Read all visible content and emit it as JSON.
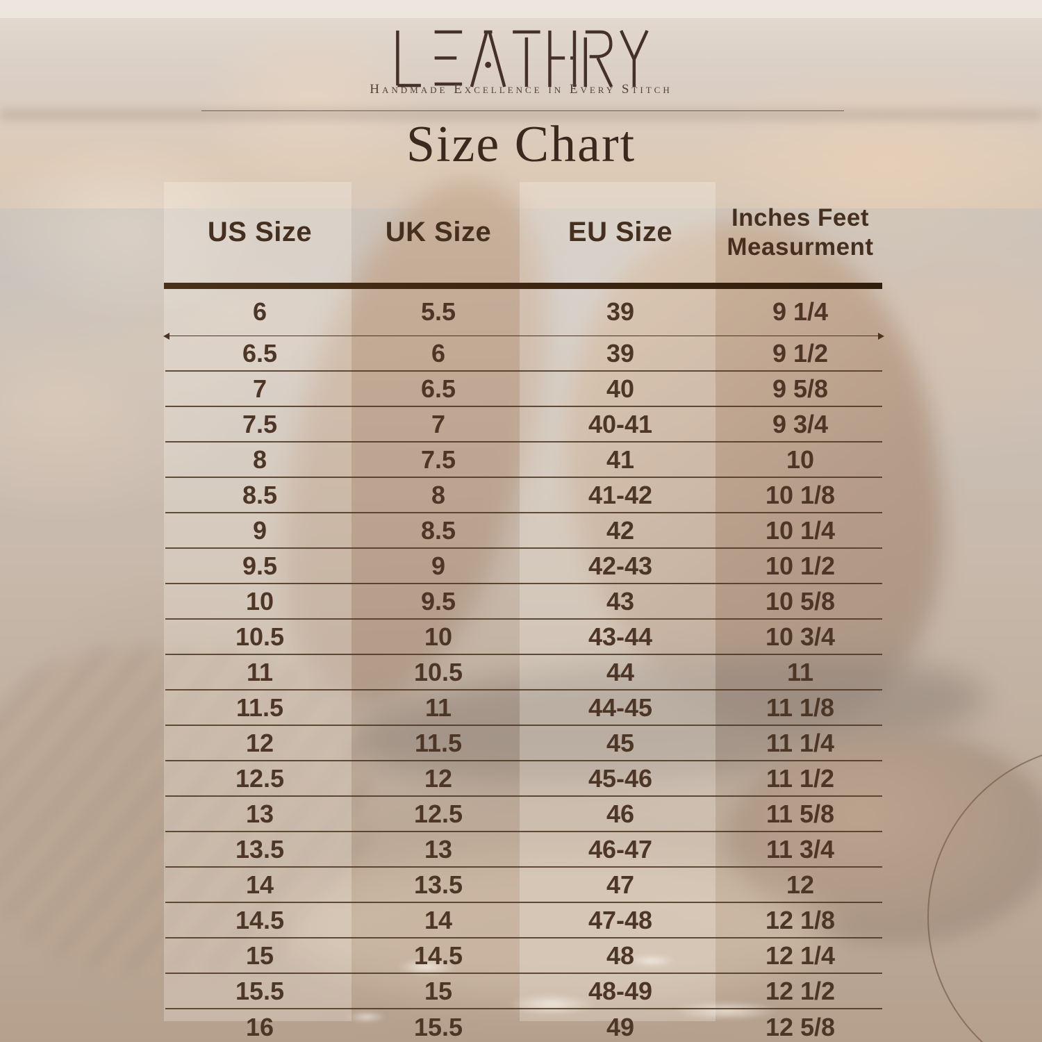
{
  "brand": {
    "logo_text": "LEATHRY",
    "tagline": "Handmade Excellence in Every Stitch"
  },
  "title": "Size Chart",
  "table": {
    "columns": [
      {
        "label": "US Size"
      },
      {
        "label": "UK Size"
      },
      {
        "label": "EU Size"
      },
      {
        "label": "Inches Feet",
        "label_line2": "Measurment"
      }
    ],
    "rows": [
      [
        "6",
        "5.5",
        "39",
        "9 1/4"
      ],
      [
        "6.5",
        "6",
        "39",
        "9 1/2"
      ],
      [
        "7",
        "6.5",
        "40",
        "9 5/8"
      ],
      [
        "7.5",
        "7",
        "40-41",
        "9 3/4"
      ],
      [
        "8",
        "7.5",
        "41",
        "10"
      ],
      [
        "8.5",
        "8",
        "41-42",
        "10 1/8"
      ],
      [
        "9",
        "8.5",
        "42",
        "10 1/4"
      ],
      [
        "9.5",
        "9",
        "42-43",
        "10 1/2"
      ],
      [
        "10",
        "9.5",
        "43",
        "10 5/8"
      ],
      [
        "10.5",
        "10",
        "43-44",
        "10 3/4"
      ],
      [
        "11",
        "10.5",
        "44",
        "11"
      ],
      [
        "11.5",
        "11",
        "44-45",
        "11 1/8"
      ],
      [
        "12",
        "11.5",
        "45",
        "11 1/4"
      ],
      [
        "12.5",
        "12",
        "45-46",
        "11 1/2"
      ],
      [
        "13",
        "12.5",
        "46",
        "11 5/8"
      ],
      [
        "13.5",
        "13",
        "46-47",
        "11 3/4"
      ],
      [
        "14",
        "13.5",
        "47",
        "12"
      ],
      [
        "14.5",
        "14",
        "47-48",
        "12 1/8"
      ],
      [
        "15",
        "14.5",
        "48",
        "12 1/4"
      ],
      [
        "15.5",
        "15",
        "48-49",
        "12 1/2"
      ],
      [
        "16",
        "15.5",
        "49",
        "12 5/8"
      ]
    ]
  },
  "colors": {
    "text_brown": "#4d3626",
    "header_brown": "#45301f",
    "rule_dark": "#3a2513",
    "title_brown": "#3b2920",
    "logo_brown": "#46302a"
  }
}
